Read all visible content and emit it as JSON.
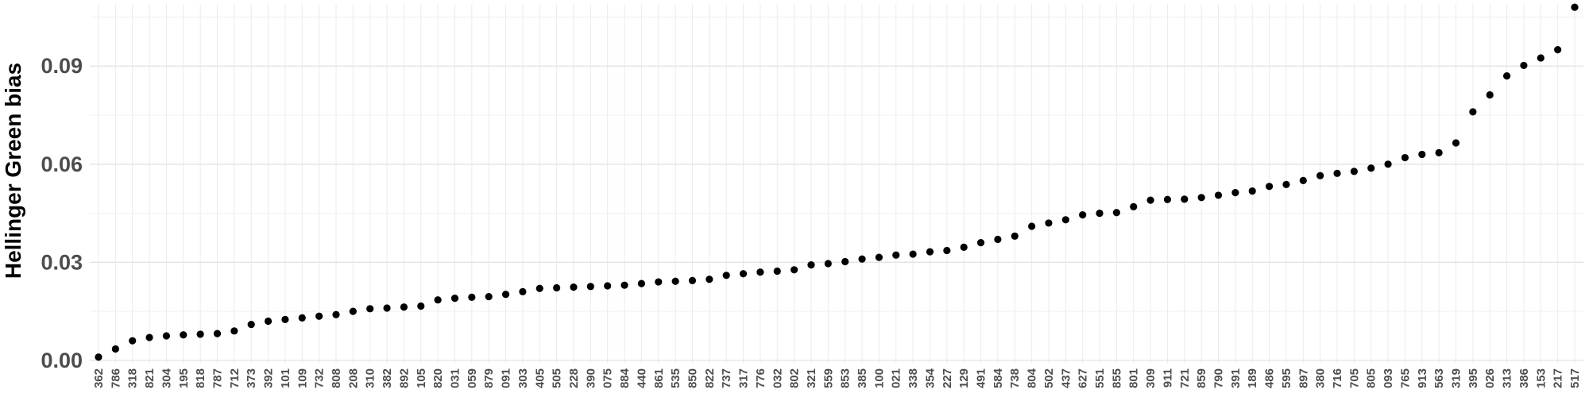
{
  "chart_data": {
    "type": "scatter",
    "title": "",
    "xlabel": "",
    "ylabel": "Hellinger Green bias",
    "ylim": [
      -0.001,
      0.109
    ],
    "yticks": [
      0.0,
      0.03,
      0.06,
      0.09
    ],
    "ytick_labels": [
      "0.00",
      "0.03",
      "0.06",
      "0.09"
    ],
    "grid": true,
    "point_color": "#000000",
    "categories": [
      "362",
      "786",
      "318",
      "821",
      "304",
      "195",
      "818",
      "787",
      "712",
      "373",
      "392",
      "101",
      "109",
      "732",
      "808",
      "208",
      "310",
      "382",
      "892",
      "105",
      "820",
      "031",
      "059",
      "879",
      "091",
      "303",
      "405",
      "505",
      "228",
      "390",
      "075",
      "884",
      "440",
      "861",
      "535",
      "850",
      "822",
      "737",
      "317",
      "776",
      "032",
      "802",
      "321",
      "559",
      "853",
      "385",
      "100",
      "021",
      "338",
      "354",
      "227",
      "129",
      "491",
      "584",
      "738",
      "804",
      "502",
      "437",
      "627",
      "551",
      "855",
      "801",
      "309",
      "911",
      "721",
      "859",
      "790",
      "391",
      "189",
      "486",
      "595",
      "897",
      "380",
      "716",
      "705",
      "805",
      "093",
      "765",
      "913",
      "563",
      "319",
      "395",
      "026",
      "313",
      "386",
      "153",
      "217",
      "517"
    ],
    "values": [
      0.001,
      0.0035,
      0.006,
      0.007,
      0.0075,
      0.0078,
      0.008,
      0.0082,
      0.009,
      0.011,
      0.012,
      0.0125,
      0.013,
      0.0135,
      0.014,
      0.015,
      0.0158,
      0.016,
      0.0163,
      0.0166,
      0.0185,
      0.019,
      0.0193,
      0.0195,
      0.0202,
      0.021,
      0.022,
      0.0222,
      0.0224,
      0.0226,
      0.0228,
      0.023,
      0.0235,
      0.024,
      0.0242,
      0.0244,
      0.0248,
      0.026,
      0.0265,
      0.027,
      0.0273,
      0.0277,
      0.0292,
      0.0296,
      0.0302,
      0.031,
      0.0315,
      0.0322,
      0.0325,
      0.0332,
      0.0336,
      0.0346,
      0.036,
      0.037,
      0.038,
      0.041,
      0.042,
      0.043,
      0.0445,
      0.045,
      0.0452,
      0.047,
      0.049,
      0.0492,
      0.0493,
      0.0498,
      0.0505,
      0.0513,
      0.0518,
      0.0532,
      0.0538,
      0.055,
      0.0565,
      0.0572,
      0.0578,
      0.0588,
      0.06,
      0.062,
      0.063,
      0.0635,
      0.0665,
      0.076,
      0.0812,
      0.087,
      0.0902,
      0.0925,
      0.095,
      0.108
    ]
  }
}
